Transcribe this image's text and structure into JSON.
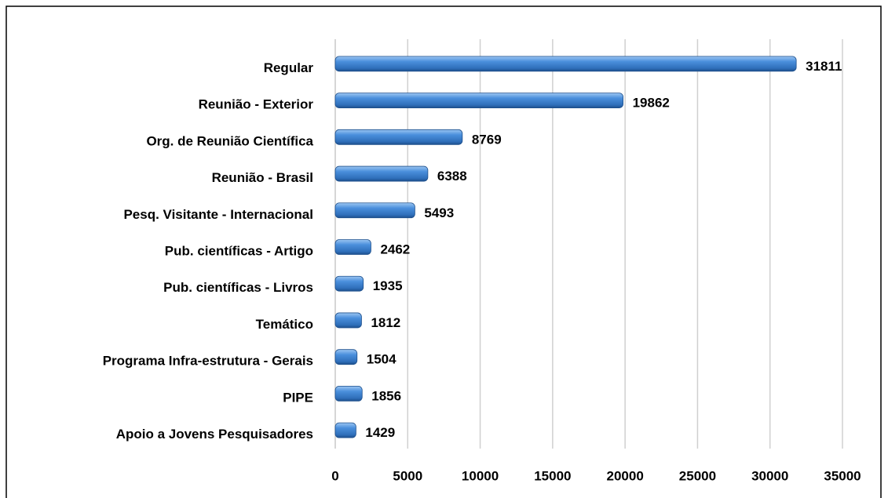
{
  "chart_data": {
    "type": "bar",
    "orientation": "horizontal",
    "categories": [
      "Regular",
      "Reunião - Exterior",
      "Org. de Reunião Científica",
      "Reunião - Brasil",
      "Pesq. Visitante - Internacional",
      "Pub. científicas - Artigo",
      "Pub. científicas - Livros",
      "Temático",
      "Programa Infra-estrutura - Gerais",
      "PIPE",
      "Apoio a Jovens Pesquisadores"
    ],
    "values": [
      31811,
      19862,
      8769,
      6388,
      5493,
      2462,
      1935,
      1812,
      1504,
      1856,
      1429
    ],
    "color": "#4a8fdc",
    "xlim": [
      0,
      35000
    ],
    "xticks": [
      0,
      5000,
      10000,
      15000,
      20000,
      25000,
      30000,
      35000
    ],
    "grid": true
  }
}
